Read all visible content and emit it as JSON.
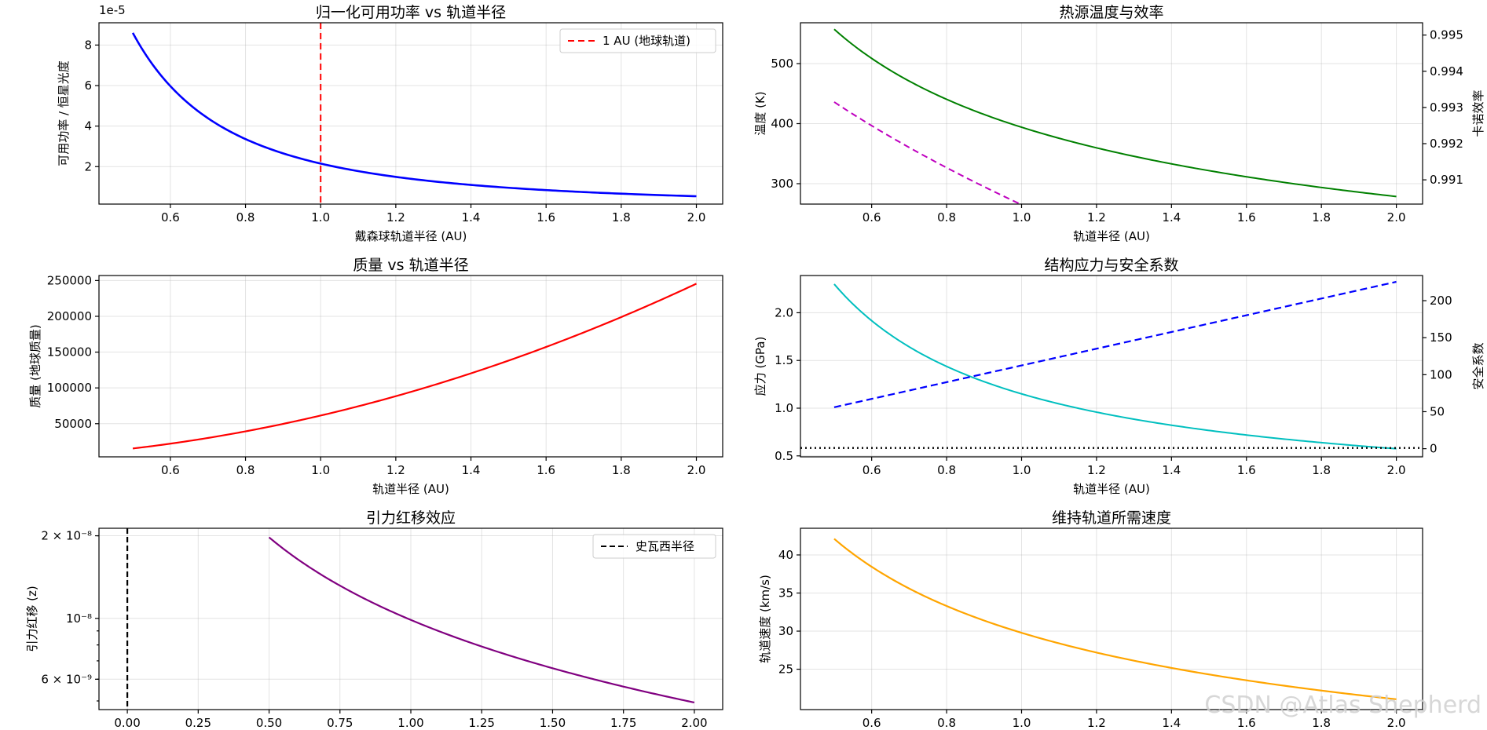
{
  "watermark": "CSDN @Atlas Shepherd",
  "chart_data": [
    {
      "id": "p1",
      "type": "line",
      "title": "归一化可用功率 vs 轨道半径",
      "xlabel": "戴森球轨道半径 (AU)",
      "ylabel": "可用功率 / 恒星光度",
      "offset_label": "1e-5",
      "xlim": [
        0.41,
        2.07
      ],
      "ylim": [
        0.15,
        9.1
      ],
      "xticks": [
        0.6,
        0.8,
        1.0,
        1.2,
        1.4,
        1.6,
        1.8,
        2.0
      ],
      "xtick_labels": [
        "0.6",
        "0.8",
        "1.0",
        "1.2",
        "1.4",
        "1.6",
        "1.8",
        "2.0"
      ],
      "yticks": [
        2,
        4,
        6,
        8
      ],
      "ytick_labels": [
        "2",
        "4",
        "6",
        "8"
      ],
      "series": [
        {
          "name": "power",
          "color": "#0000ff",
          "width": 2.6,
          "dash": "",
          "func": "2.15/(x*x)",
          "x0": 0.5,
          "x1": 2.0
        }
      ],
      "vlines": [
        {
          "x": 1.0,
          "color": "#ff0000",
          "dash": "8,5",
          "width": 2
        }
      ],
      "legend": {
        "position": "top-right",
        "entries": [
          {
            "label": "1 AU (地球轨道)",
            "color": "#ff0000",
            "dash": "8,5"
          }
        ]
      }
    },
    {
      "id": "p2",
      "type": "line",
      "title": "热源温度与效率",
      "xlabel": "轨道半径 (AU)",
      "ylabel": "温度 (K)",
      "ylabel_color": "#008000",
      "ylabel2": "卡诺效率",
      "ylabel2_color": "#bf00bf",
      "xlim": [
        0.41,
        2.07
      ],
      "ylim": [
        266,
        568
      ],
      "ylim2": [
        0.99033,
        0.99534
      ],
      "xticks": [
        0.6,
        0.8,
        1.0,
        1.2,
        1.4,
        1.6,
        1.8,
        2.0
      ],
      "xtick_labels": [
        "0.6",
        "0.8",
        "1.0",
        "1.2",
        "1.4",
        "1.6",
        "1.8",
        "2.0"
      ],
      "yticks": [
        300,
        400,
        500
      ],
      "ytick_labels": [
        "300",
        "400",
        "500"
      ],
      "yticks2": [
        0.991,
        0.992,
        0.993,
        0.994,
        0.995
      ],
      "ytick2_labels": [
        "0.991",
        "0.992",
        "0.993",
        "0.994",
        "0.995"
      ],
      "series": [
        {
          "name": "temperature",
          "color": "#008000",
          "width": 2,
          "dash": "",
          "func": "394/Math.sqrt(x)",
          "x0": 0.5,
          "x1": 2.0
        },
        {
          "name": "carnot",
          "axis": "right",
          "color": "#bf00bf",
          "width": 2,
          "dash": "8,5",
          "func": "1-(2.7/(5778*Math.sqrt(0.004654/(2*x))))",
          "x0": 0.5,
          "x1": 2.0
        }
      ]
    },
    {
      "id": "p3",
      "type": "line",
      "title": "质量 vs 轨道半径",
      "xlabel": "轨道半径 (AU)",
      "ylabel": "质量 (地球质量)",
      "xlim": [
        0.41,
        2.07
      ],
      "ylim": [
        3700,
        257000
      ],
      "xticks": [
        0.6,
        0.8,
        1.0,
        1.2,
        1.4,
        1.6,
        1.8,
        2.0
      ],
      "xtick_labels": [
        "0.6",
        "0.8",
        "1.0",
        "1.2",
        "1.4",
        "1.6",
        "1.8",
        "2.0"
      ],
      "yticks": [
        50000,
        100000,
        150000,
        200000,
        250000
      ],
      "ytick_labels": [
        "50000",
        "100000",
        "150000",
        "200000",
        "250000"
      ],
      "series": [
        {
          "name": "mass",
          "color": "#ff0000",
          "width": 2.2,
          "dash": "",
          "func": "61400*x*x",
          "x0": 0.5,
          "x1": 2.0
        }
      ]
    },
    {
      "id": "p4",
      "type": "line",
      "title": "结构应力与安全系数",
      "xlabel": "轨道半径 (AU)",
      "ylabel": "应力 (GPa)",
      "ylabel_color": "#00bfbf",
      "ylabel2": "安全系数",
      "ylabel2_color": "#0000ff",
      "xlim": [
        0.41,
        2.07
      ],
      "ylim": [
        0.49,
        2.39
      ],
      "ylim2": [
        -11,
        234
      ],
      "xticks": [
        0.6,
        0.8,
        1.0,
        1.2,
        1.4,
        1.6,
        1.8,
        2.0
      ],
      "xtick_labels": [
        "0.6",
        "0.8",
        "1.0",
        "1.2",
        "1.4",
        "1.6",
        "1.8",
        "2.0"
      ],
      "yticks": [
        0.5,
        1.0,
        1.5,
        2.0
      ],
      "ytick_labels": [
        "0.5",
        "1.0",
        "1.5",
        "2.0"
      ],
      "yticks2": [
        0,
        50,
        100,
        150,
        200
      ],
      "ytick2_labels": [
        "0",
        "50",
        "100",
        "150",
        "200"
      ],
      "series": [
        {
          "name": "stress",
          "color": "#00bfbf",
          "width": 2,
          "dash": "",
          "func": "1.15/x",
          "x0": 0.5,
          "x1": 2.0
        },
        {
          "name": "safety",
          "axis": "right",
          "color": "#0000ff",
          "width": 2.2,
          "dash": "9,5",
          "func": "56+113*(x-0.5)",
          "x0": 0.5,
          "x1": 2.0
        }
      ],
      "hlines": [
        {
          "axis": "right",
          "y": 1,
          "color": "#000000",
          "dash": "2,4",
          "width": 2.4
        }
      ]
    },
    {
      "id": "p5",
      "type": "line",
      "title": "引力红移效应",
      "xlabel": "",
      "ylabel": "引力红移 (z)",
      "yscale": "log",
      "xlim": [
        -0.1,
        2.1
      ],
      "ylim": [
        4.65e-09,
        2.13e-08
      ],
      "xticks": [
        0.0,
        0.25,
        0.5,
        0.75,
        1.0,
        1.25,
        1.5,
        1.75,
        2.0
      ],
      "xtick_labels": [
        "0.00",
        "0.25",
        "0.50",
        "0.75",
        "1.00",
        "1.25",
        "1.50",
        "1.75",
        "2.00"
      ],
      "yticks": [
        6e-09,
        1e-08,
        2e-08
      ],
      "ytick_labels": [
        "6 × 10⁻⁹",
        "10⁻⁸",
        "2 × 10⁻⁸"
      ],
      "series": [
        {
          "name": "redshift",
          "color": "#800080",
          "width": 2.2,
          "dash": "",
          "func": "9.87e-9/x",
          "x0": 0.5,
          "x1": 2.0
        }
      ],
      "vlines": [
        {
          "x": 0.0,
          "color": "#000000",
          "dash": "7,4",
          "width": 2.2
        }
      ],
      "legend": {
        "position": "top-right",
        "entries": [
          {
            "label": "史瓦西半径",
            "color": "#000000",
            "dash": "7,4"
          }
        ]
      }
    },
    {
      "id": "p6",
      "type": "line",
      "title": "维持轨道所需速度",
      "xlabel": "",
      "ylabel": "轨道速度 (km/s)",
      "xlim": [
        0.41,
        2.07
      ],
      "ylim": [
        19.7,
        43.5
      ],
      "xticks": [
        0.6,
        0.8,
        1.0,
        1.2,
        1.4,
        1.6,
        1.8,
        2.0
      ],
      "xtick_labels": [
        "0.6",
        "0.8",
        "1.0",
        "1.2",
        "1.4",
        "1.6",
        "1.8",
        "2.0"
      ],
      "yticks": [
        25,
        30,
        35,
        40
      ],
      "ytick_labels": [
        "25",
        "30",
        "35",
        "40"
      ],
      "series": [
        {
          "name": "velocity",
          "color": "#ffa500",
          "width": 2.2,
          "dash": "",
          "func": "29.78/Math.sqrt(x)",
          "x0": 0.5,
          "x1": 2.0
        }
      ]
    }
  ]
}
